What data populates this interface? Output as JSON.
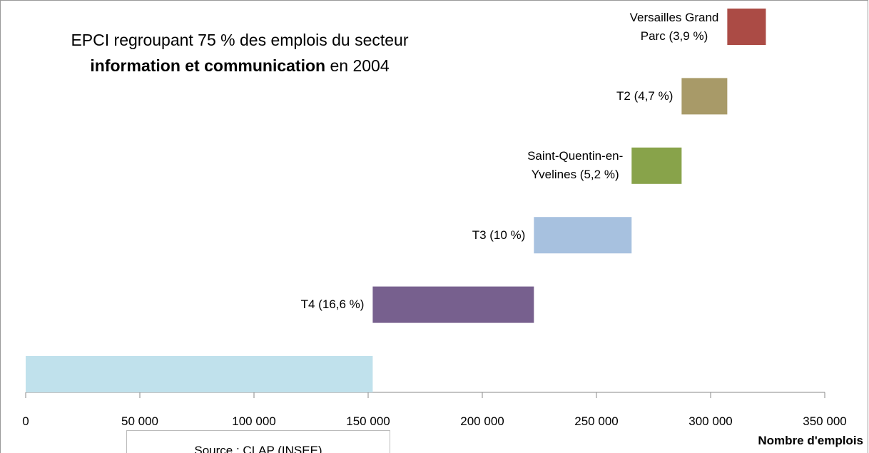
{
  "chart_data": {
    "type": "waterfall-bar",
    "title": "EPCI regroupant 75 % des emplois  du secteur",
    "title_bold": "information et communication",
    "title_end": "en 2004",
    "x_label": "Nombre d'emplois",
    "source": "Source : CLAP (INSEE)",
    "categories": [
      null,
      "T4 (16,6 %)",
      "T3  (10 %)",
      "Saint-Quentin-en-\nYvelines (5,2 %)",
      "T2 (4,7 %)",
      "Versailles Grand\nParc (3,9 %)"
    ],
    "colors": [
      "#c0e1ec",
      "#77608e",
      "#a7c1df",
      "#88a34a",
      "#a89a68",
      "#ab4b45"
    ],
    "values": [
      152000,
      70600,
      42800,
      21900,
      20000,
      16900
    ],
    "xlim": [
      0,
      350000
    ],
    "xticks": [
      0,
      {
        "value": 50000,
        "label": "50 000"
      },
      {
        "value": 100000,
        "label": "100 000"
      },
      {
        "value": 150000,
        "label": "150 000"
      },
      {
        "value": 200000,
        "label": "200 000"
      },
      {
        "value": 250000,
        "label": "250 000"
      },
      {
        "value": 300000,
        "label": "300 000"
      },
      {
        "value": 350000,
        "label": "350 000"
      }
    ]
  }
}
